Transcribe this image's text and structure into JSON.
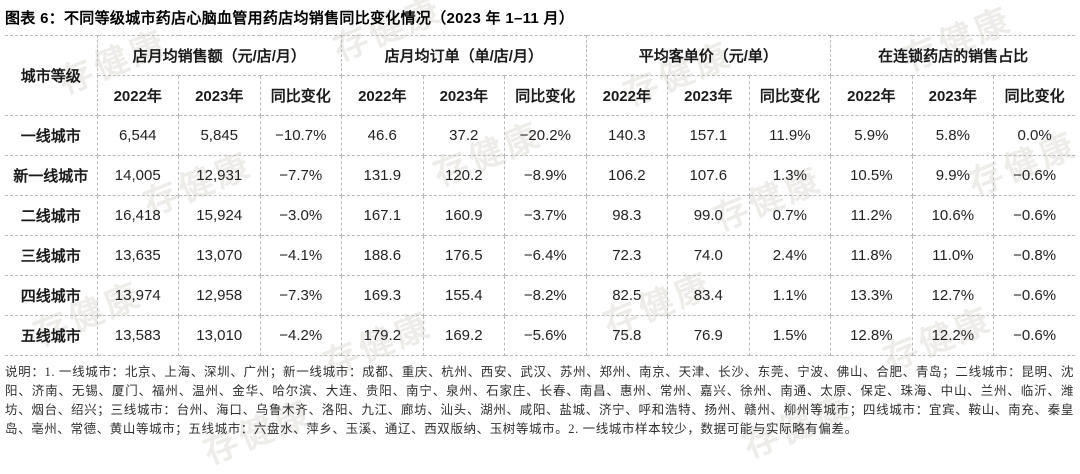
{
  "watermark": "存健康",
  "chart_data": {
    "type": "table",
    "title": "图表 6：不同等级城市药店心脑血管用药店均销售同比变化情况（2023 年 1–11 月）",
    "corner_header": "城市等级",
    "column_groups": [
      "店月均销售额（元/店/月）",
      "店月均订单（单/店/月）",
      "平均客单价（元/单）",
      "在连锁药店的销售占比"
    ],
    "sub_headers": [
      "2022年",
      "2023年",
      "同比变化"
    ],
    "rows": [
      {
        "tier": "一线城市",
        "values": [
          "6,544",
          "5,845",
          "−10.7%",
          "46.6",
          "37.2",
          "−20.2%",
          "140.3",
          "157.1",
          "11.9%",
          "5.9%",
          "5.8%",
          "0.0%"
        ]
      },
      {
        "tier": "新一线城市",
        "values": [
          "14,005",
          "12,931",
          "−7.7%",
          "131.9",
          "120.2",
          "−8.9%",
          "106.2",
          "107.6",
          "1.3%",
          "10.5%",
          "9.9%",
          "−0.6%"
        ]
      },
      {
        "tier": "二线城市",
        "values": [
          "16,418",
          "15,924",
          "−3.0%",
          "167.1",
          "160.9",
          "−3.7%",
          "98.3",
          "99.0",
          "0.7%",
          "11.2%",
          "10.6%",
          "−0.6%"
        ]
      },
      {
        "tier": "三线城市",
        "values": [
          "13,635",
          "13,070",
          "−4.1%",
          "188.6",
          "176.5",
          "−6.4%",
          "72.3",
          "74.0",
          "2.4%",
          "11.8%",
          "11.0%",
          "−0.8%"
        ]
      },
      {
        "tier": "四线城市",
        "values": [
          "13,974",
          "12,958",
          "−7.3%",
          "169.3",
          "155.4",
          "−8.2%",
          "82.5",
          "83.4",
          "1.1%",
          "13.3%",
          "12.7%",
          "−0.6%"
        ]
      },
      {
        "tier": "五线城市",
        "values": [
          "13,583",
          "13,010",
          "−4.2%",
          "179.2",
          "169.2",
          "−5.6%",
          "75.8",
          "76.9",
          "1.5%",
          "12.8%",
          "12.2%",
          "−0.6%"
        ]
      }
    ]
  },
  "notes": "说明：1. 一线城市：北京、上海、深圳、广州；新一线城市：成都、重庆、杭州、西安、武汉、苏州、郑州、南京、天津、长沙、东莞、宁波、佛山、合肥、青岛；二线城市：昆明、沈阳、济南、无锡、厦门、福州、温州、金华、哈尔滨、大连、贵阳、南宁、泉州、石家庄、长春、南昌、惠州、常州、嘉兴、徐州、南通、太原、保定、珠海、中山、兰州、临沂、潍坊、烟台、绍兴；三线城市：台州、海口、乌鲁木齐、洛阳、九江、廊坊、汕头、湖州、咸阳、盐城、济宁、呼和浩特、扬州、赣州、柳州等城市；四线城市：宜宾、鞍山、南充、秦皇岛、亳州、常德、黄山等城市；五线城市：六盘水、萍乡、玉溪、通辽、西双版纳、玉树等城市。2. 一线城市样本较少，数据可能与实际略有偏差。"
}
